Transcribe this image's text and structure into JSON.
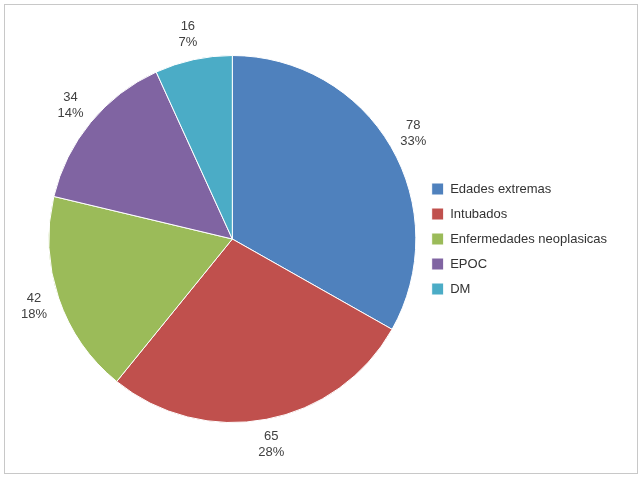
{
  "chart_data": {
    "type": "pie",
    "categories": [
      "Edades extremas",
      "Intubados",
      "Enfermedades neoplasicas",
      "EPOC",
      "DM"
    ],
    "values": [
      78,
      65,
      42,
      34,
      16
    ],
    "percentages": [
      {
        "value": 33,
        "label": "33%"
      },
      {
        "value": 28,
        "label": "28%"
      },
      {
        "value": 18,
        "label": "18%"
      },
      {
        "value": 14,
        "label": "14%"
      },
      {
        "value": 7,
        "label": "7%"
      }
    ],
    "colors": [
      "#4f81bd",
      "#c0504d",
      "#9bbb59",
      "#8064a2",
      "#4bacc6"
    ],
    "data_labels": true,
    "legend": "right"
  }
}
